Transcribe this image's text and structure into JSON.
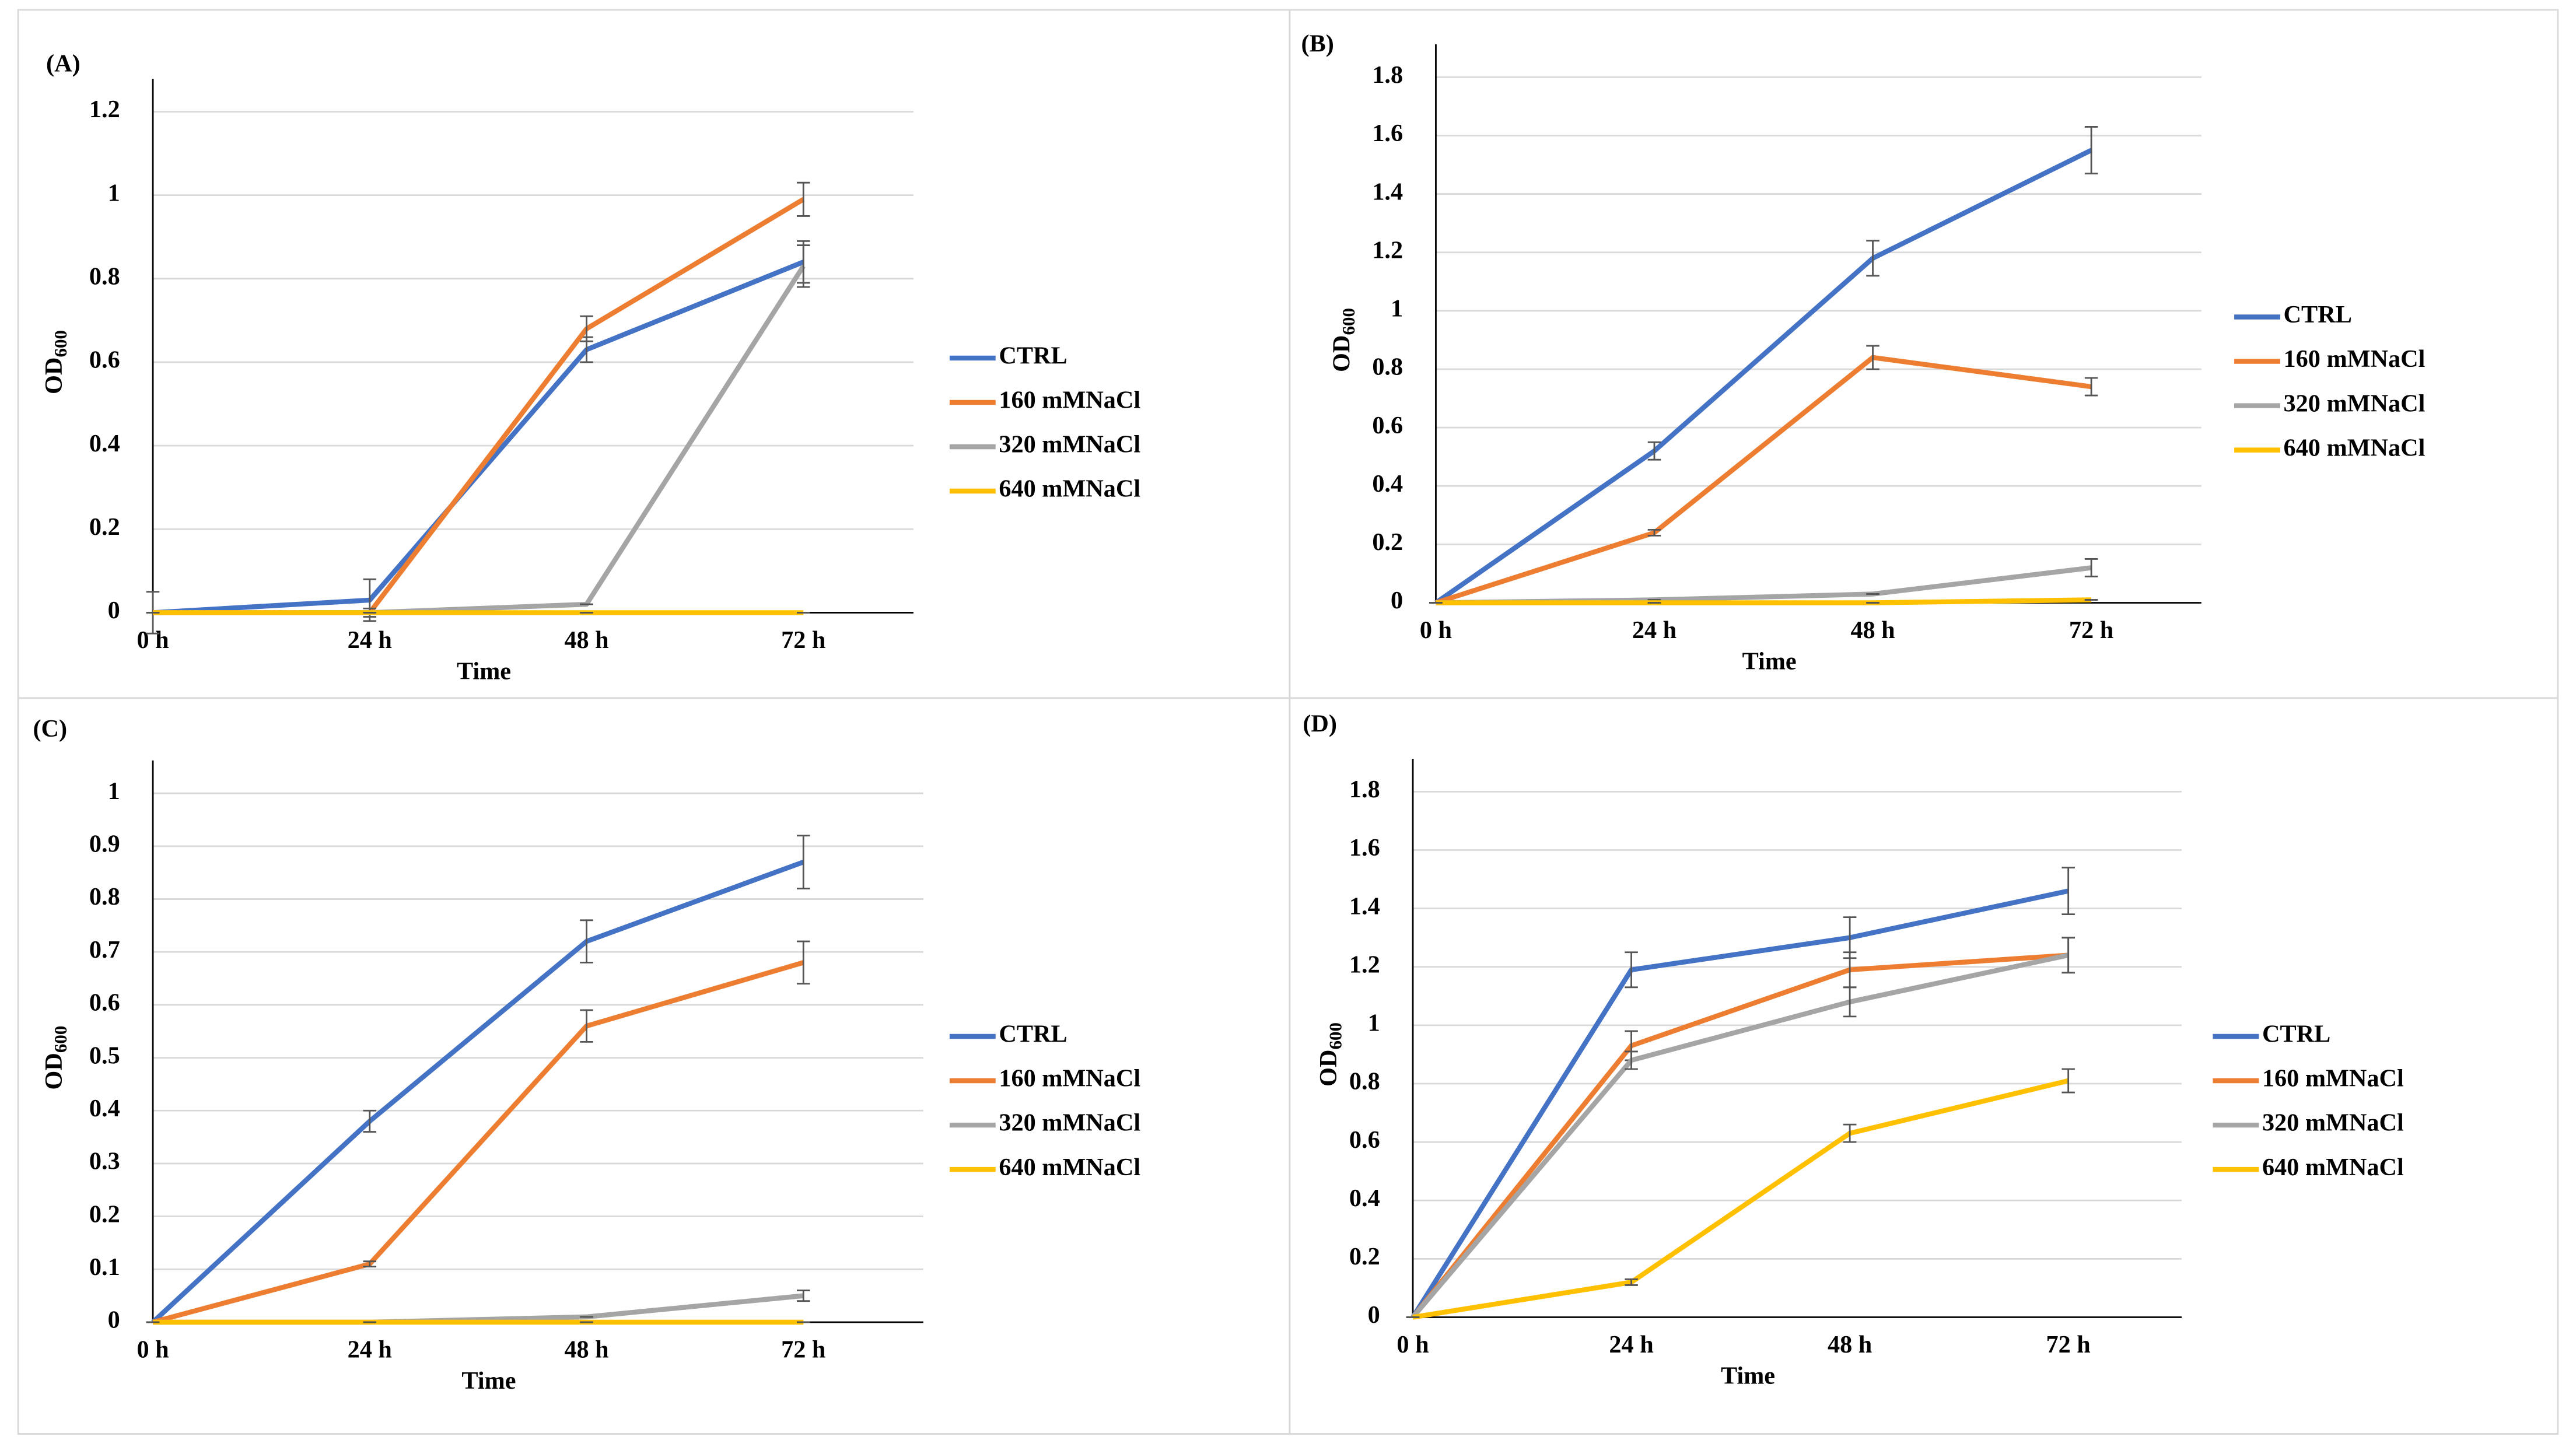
{
  "chart_data": [
    {
      "type": "line",
      "title": "(A)",
      "y_label": "OD",
      "y_label_sub": "600",
      "x_label": "Time",
      "categories": [
        "0 h",
        "24 h",
        "48 h",
        "72 h"
      ],
      "ylim": [
        0,
        1.2
      ],
      "yticks": [
        0,
        0.2,
        0.4,
        0.6,
        0.8,
        1,
        1.2
      ],
      "grid": true,
      "series": [
        {
          "name": "CTRL",
          "color": "#4472c4",
          "values": [
            0,
            0.03,
            0.63,
            0.84
          ],
          "errors": [
            0.05,
            0.05,
            0.03,
            0.05
          ]
        },
        {
          "name": "160 mMNaCl",
          "color": "#ed7d31",
          "values": [
            0,
            0,
            0.68,
            0.99
          ],
          "errors": [
            0,
            0.01,
            0.03,
            0.04
          ]
        },
        {
          "name": "320 mMNaCl",
          "color": "#a5a5a5",
          "values": [
            0,
            0,
            0.02,
            0.83
          ],
          "errors": [
            0,
            0,
            0,
            0.05
          ]
        },
        {
          "name": "640 mMNaCl",
          "color": "#ffc000",
          "values": [
            0,
            0,
            0,
            0
          ],
          "errors": [
            0,
            0,
            0,
            0
          ]
        }
      ]
    },
    {
      "type": "line",
      "title": "(B)",
      "y_label": "OD",
      "y_label_sub": "600",
      "x_label": "Time",
      "categories": [
        "0 h",
        "24 h",
        "48 h",
        "72 h"
      ],
      "ylim": [
        0,
        1.8
      ],
      "yticks": [
        0,
        0.2,
        0.4,
        0.6,
        0.8,
        1,
        1.2,
        1.4,
        1.6,
        1.8
      ],
      "grid": true,
      "series": [
        {
          "name": "CTRL",
          "color": "#4472c4",
          "values": [
            0,
            0.52,
            1.18,
            1.55
          ],
          "errors": [
            0,
            0.03,
            0.06,
            0.08
          ]
        },
        {
          "name": "160 mMNaCl",
          "color": "#ed7d31",
          "values": [
            0,
            0.24,
            0.84,
            0.74
          ],
          "errors": [
            0,
            0.01,
            0.04,
            0.03
          ]
        },
        {
          "name": "320 mMNaCl",
          "color": "#a5a5a5",
          "values": [
            0,
            0.01,
            0.03,
            0.12
          ],
          "errors": [
            0,
            0,
            0,
            0.03
          ]
        },
        {
          "name": "640 mMNaCl",
          "color": "#ffc000",
          "values": [
            0,
            0,
            0,
            0.01
          ],
          "errors": [
            0,
            0,
            0,
            0
          ]
        }
      ]
    },
    {
      "type": "line",
      "title": "(C)",
      "y_label": "OD",
      "y_label_sub": "600",
      "x_label": "Time",
      "categories": [
        "0 h",
        "24 h",
        "48 h",
        "72 h"
      ],
      "ylim": [
        0,
        1
      ],
      "yticks": [
        0,
        0.1,
        0.2,
        0.3,
        0.4,
        0.5,
        0.6,
        0.7,
        0.8,
        0.9,
        1
      ],
      "grid": true,
      "series": [
        {
          "name": "CTRL",
          "color": "#4472c4",
          "values": [
            0,
            0.38,
            0.72,
            0.87
          ],
          "errors": [
            0,
            0.02,
            0.04,
            0.05
          ]
        },
        {
          "name": "160 mMNaCl",
          "color": "#ed7d31",
          "values": [
            0,
            0.11,
            0.56,
            0.68
          ],
          "errors": [
            0,
            0.005,
            0.03,
            0.04
          ]
        },
        {
          "name": "320 mMNaCl",
          "color": "#a5a5a5",
          "values": [
            0,
            0,
            0.01,
            0.05
          ],
          "errors": [
            0,
            0,
            0,
            0.01
          ]
        },
        {
          "name": "640 mMNaCl",
          "color": "#ffc000",
          "values": [
            0,
            0,
            0,
            0
          ],
          "errors": [
            0,
            0,
            0,
            0
          ]
        }
      ]
    },
    {
      "type": "line",
      "title": "(D)",
      "y_label": "OD",
      "y_label_sub": "600",
      "x_label": "Time",
      "categories": [
        "0 h",
        "24 h",
        "48 h",
        "72 h"
      ],
      "ylim": [
        0,
        1.8
      ],
      "yticks": [
        0,
        0.2,
        0.4,
        0.6,
        0.8,
        1,
        1.2,
        1.4,
        1.6,
        1.8
      ],
      "grid": true,
      "series": [
        {
          "name": "CTRL",
          "color": "#4472c4",
          "values": [
            0,
            1.19,
            1.3,
            1.46
          ],
          "errors": [
            0,
            0.06,
            0.07,
            0.08
          ]
        },
        {
          "name": "160 mMNaCl",
          "color": "#ed7d31",
          "values": [
            0,
            0.93,
            1.19,
            1.24
          ],
          "errors": [
            0,
            0.05,
            0.06,
            0.06
          ]
        },
        {
          "name": "320 mMNaCl",
          "color": "#a5a5a5",
          "values": [
            0,
            0.88,
            1.08,
            1.24
          ],
          "errors": [
            0,
            0.03,
            0.05,
            0.06
          ]
        },
        {
          "name": "640 mMNaCl",
          "color": "#ffc000",
          "values": [
            0,
            0.12,
            0.63,
            0.81
          ],
          "errors": [
            0,
            0.01,
            0.03,
            0.04
          ]
        }
      ]
    }
  ]
}
